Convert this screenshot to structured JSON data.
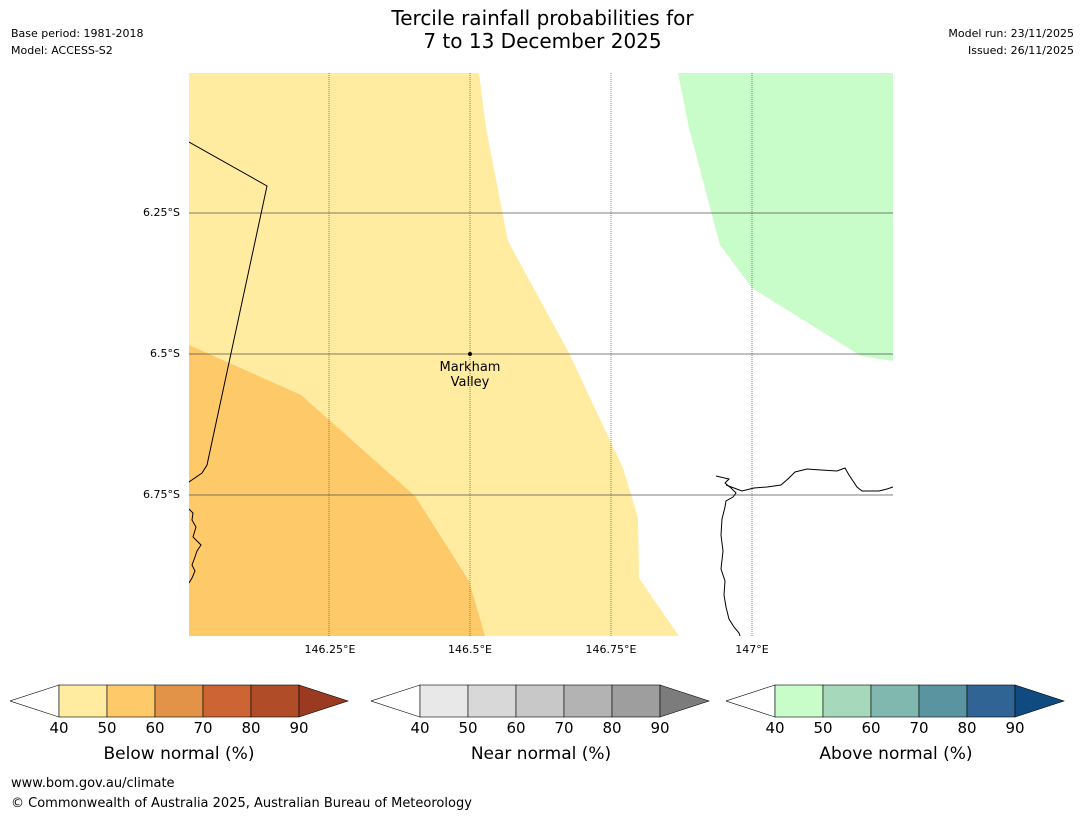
{
  "header": {
    "title_line1": "Tercile rainfall probabilities for",
    "title_line2": "7 to 13 December 2025",
    "base_period": "Base period: 1981-2018",
    "model": "Model: ACCESS-S2",
    "model_run": "Model run: 23/11/2025",
    "issued": "Issued: 26/11/2025"
  },
  "map": {
    "lat_ticks": [
      "6.25°S",
      "6.5°S",
      "6.75°S"
    ],
    "lon_ticks": [
      "146.25°E",
      "146.5°E",
      "146.75°E",
      "147°E"
    ],
    "place": {
      "name_line1": "Markham",
      "name_line2": "Valley"
    },
    "colors": {
      "below_50": "#ffeca0",
      "below_60": "#fec968",
      "above_50": "#c8fcc8"
    }
  },
  "legends": [
    {
      "title": "Below normal (%)",
      "ticks": [
        "40",
        "50",
        "60",
        "70",
        "80",
        "90"
      ],
      "colors": [
        "#ffffff",
        "#ffeca0",
        "#fec968",
        "#e29347",
        "#cc6533",
        "#b04d28",
        "#9a3a20"
      ]
    },
    {
      "title": "Near normal (%)",
      "ticks": [
        "40",
        "50",
        "60",
        "70",
        "80",
        "90"
      ],
      "colors": [
        "#ffffff",
        "#e8e8e8",
        "#d8d8d8",
        "#c8c8c8",
        "#b3b3b3",
        "#9e9e9e",
        "#7c7c7c"
      ]
    },
    {
      "title": "Above normal (%)",
      "ticks": [
        "40",
        "50",
        "60",
        "70",
        "80",
        "90"
      ],
      "colors": [
        "#ffffff",
        "#c8fcc8",
        "#a6d8bb",
        "#80b8b0",
        "#5a94a0",
        "#2f6494",
        "#0f4a80"
      ]
    }
  ],
  "footer": {
    "url": "www.bom.gov.au/climate",
    "copyright": "© Commonwealth of Australia 2025, Australian Bureau of Meteorology"
  }
}
